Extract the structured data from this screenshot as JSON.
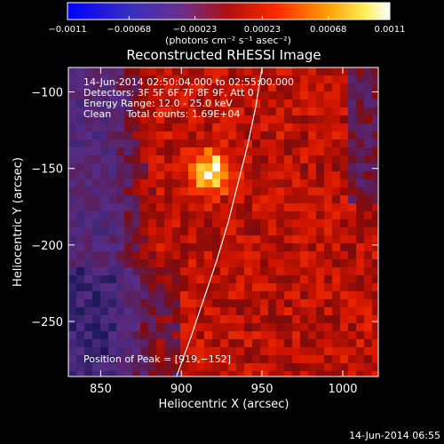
{
  "chart_data": {
    "type": "heatmap",
    "title": "Reconstructed RHESSI Image",
    "xlabel": "Heliocentric X (arcsec)",
    "ylabel": "Heliocentric Y (arcsec)",
    "xlim": [
      830,
      1022
    ],
    "ylim": [
      -286,
      -84
    ],
    "x_ticks": [
      850,
      900,
      950,
      1000
    ],
    "y_ticks": [
      -100,
      -150,
      -200,
      -250
    ],
    "x_tick_labels": [
      "850",
      "900",
      "950",
      "1000"
    ],
    "y_tick_labels": [
      "−100",
      "−150",
      "−200",
      "−250"
    ],
    "colorbar": {
      "min": -0.0011,
      "max": 0.0011,
      "ticks": [
        -0.0011,
        -0.00068,
        -0.00023,
        0.00023,
        0.00068,
        0.0011
      ],
      "tick_labels": [
        "−0.0011",
        "−0.00068",
        "−0.00023",
        "0.00023",
        "0.00068",
        "0.0011"
      ],
      "units_label": "(photons cm⁻² s⁻¹ asec⁻²)",
      "colormap": "blue-purple-red-orange-yellow-white"
    },
    "annotations": [
      "14-Jun-2014 02:50:04.000 to 02:55:00.000",
      "Detectors: 3F 5F 6F 7F 8F 9F, Att 0",
      "Energy Range: 12.0 - 25.0 keV",
      "Clean     Total counts: 1.69E+04"
    ],
    "peak_label": "Position of Peak = [919,−152]",
    "peak": {
      "x": 919,
      "y": -152
    },
    "limb": [
      {
        "x": 897,
        "y": -286
      },
      {
        "x": 906,
        "y": -260
      },
      {
        "x": 914,
        "y": -235
      },
      {
        "x": 922,
        "y": -210
      },
      {
        "x": 929,
        "y": -185
      },
      {
        "x": 935,
        "y": -160
      },
      {
        "x": 941,
        "y": -135
      },
      {
        "x": 946,
        "y": -110
      },
      {
        "x": 950,
        "y": -84
      }
    ]
  },
  "timestamp": "14-Jun-2014 06:55"
}
